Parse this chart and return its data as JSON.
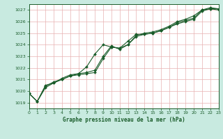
{
  "title": "Graphe pression niveau de la mer (hPa)",
  "background_color": "#c8eae0",
  "plot_bg_color": "#ffffff",
  "grid_color": "#e8b0b0",
  "line_color": "#1a5c2a",
  "tick_color": "#1a5c2a",
  "x_min": 0,
  "x_max": 23,
  "y_min": 1018.5,
  "y_max": 1027.5,
  "y_ticks": [
    1019,
    1020,
    1021,
    1022,
    1023,
    1024,
    1025,
    1026,
    1027
  ],
  "x_ticks": [
    0,
    1,
    2,
    3,
    4,
    5,
    6,
    7,
    8,
    9,
    10,
    11,
    12,
    13,
    14,
    15,
    16,
    17,
    18,
    19,
    20,
    21,
    22,
    23
  ],
  "series1_x": [
    0,
    1,
    2,
    3,
    4,
    5,
    6,
    7,
    8,
    9,
    10,
    11,
    12,
    13,
    14,
    15,
    16,
    17,
    18,
    19,
    20,
    21,
    22,
    23
  ],
  "series1_y": [
    1019.8,
    1019.1,
    1020.5,
    1020.7,
    1021.1,
    1021.4,
    1021.5,
    1022.1,
    1023.2,
    1024.0,
    1023.8,
    1023.7,
    1024.3,
    1024.9,
    1024.9,
    1025.0,
    1025.2,
    1025.5,
    1025.9,
    1026.1,
    1026.3,
    1027.0,
    1027.1,
    1027.1
  ],
  "series2_x": [
    0,
    1,
    2,
    3,
    4,
    5,
    6,
    7,
    8,
    9,
    10,
    11,
    12,
    13,
    14,
    15,
    16,
    17,
    18,
    19,
    20,
    21,
    22,
    23
  ],
  "series2_y": [
    1019.8,
    1019.1,
    1020.4,
    1020.8,
    1021.0,
    1021.3,
    1021.5,
    1021.6,
    1021.8,
    1023.0,
    1023.9,
    1023.6,
    1024.0,
    1024.8,
    1025.0,
    1025.1,
    1025.3,
    1025.6,
    1026.0,
    1026.2,
    1026.5,
    1027.0,
    1027.2,
    1027.1
  ],
  "series3_x": [
    0,
    1,
    2,
    3,
    4,
    5,
    6,
    7,
    8,
    9,
    10,
    11,
    12,
    13,
    14,
    15,
    16,
    17,
    18,
    19,
    20,
    21,
    22,
    23
  ],
  "series3_y": [
    1019.8,
    1019.1,
    1020.3,
    1020.7,
    1021.0,
    1021.3,
    1021.4,
    1021.5,
    1021.6,
    1022.8,
    1023.8,
    1023.7,
    1024.0,
    1024.7,
    1024.9,
    1025.0,
    1025.2,
    1025.5,
    1025.8,
    1026.0,
    1026.2,
    1026.9,
    1027.1,
    1027.0
  ]
}
